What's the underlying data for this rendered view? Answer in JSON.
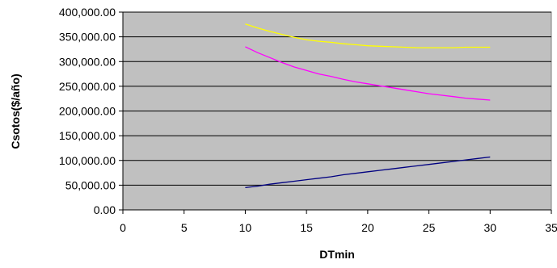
{
  "chart_data": {
    "type": "line",
    "title": "",
    "xlabel": "DTmin",
    "ylabel": "Csotos($/año)",
    "xlim": [
      0,
      35
    ],
    "ylim": [
      0,
      400000
    ],
    "x_ticks": [
      0,
      5,
      10,
      15,
      20,
      25,
      30,
      35
    ],
    "y_ticks": [
      0,
      50000,
      100000,
      150000,
      200000,
      250000,
      300000,
      350000,
      400000
    ],
    "x_tick_labels": [
      "0",
      "5",
      "10",
      "15",
      "20",
      "25",
      "30",
      "35"
    ],
    "y_tick_labels": [
      "0.00",
      "50,000.00",
      "100,000.00",
      "150,000.00",
      "200,000.00",
      "250,000.00",
      "300,000.00",
      "350,000.00",
      "400,000.00"
    ],
    "grid": "horizontal",
    "legend": "none",
    "plot_background": "#c0c0c0",
    "series": [
      {
        "color": "#ffff00",
        "x": [
          10,
          11,
          12,
          13,
          14,
          15,
          16,
          17,
          18,
          19,
          20,
          21,
          22,
          23,
          24,
          25,
          26,
          27,
          28,
          29,
          30
        ],
        "values": [
          376000,
          368000,
          361000,
          355000,
          349000,
          344000,
          341000,
          339000,
          336000,
          334000,
          332000,
          331000,
          330000,
          329000,
          328000,
          328000,
          328000,
          328000,
          329000,
          329000,
          329000
        ]
      },
      {
        "color": "#ff00ff",
        "x": [
          10,
          11,
          12,
          13,
          14,
          15,
          16,
          17,
          18,
          19,
          20,
          21,
          22,
          23,
          24,
          25,
          26,
          27,
          28,
          29,
          30
        ],
        "values": [
          330000,
          318000,
          308000,
          298000,
          289000,
          282000,
          275000,
          270000,
          264000,
          259000,
          255000,
          251000,
          247000,
          243000,
          239000,
          235000,
          232000,
          229000,
          226000,
          224000,
          222000
        ]
      },
      {
        "color": "#000080",
        "x": [
          10,
          11,
          12,
          13,
          14,
          15,
          16,
          17,
          18,
          19,
          20,
          21,
          22,
          23,
          24,
          25,
          26,
          27,
          28,
          29,
          30
        ],
        "values": [
          45000,
          48000,
          52000,
          55000,
          58000,
          61000,
          64000,
          67000,
          71000,
          74000,
          77000,
          80000,
          83000,
          86000,
          89000,
          92000,
          95000,
          98000,
          101000,
          104000,
          107000
        ]
      }
    ]
  }
}
